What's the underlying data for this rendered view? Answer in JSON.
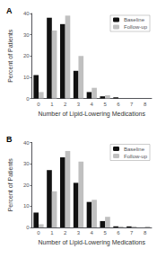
{
  "chart_data": [
    {
      "type": "bar",
      "title": "A",
      "x_label": "Number of Lipid-Lowering Medications",
      "y_label": "Percent of Patients",
      "categories": [
        0,
        1,
        2,
        3,
        4,
        5,
        6,
        7,
        8
      ],
      "series": [
        {
          "name": "Baseline",
          "color": "#111111",
          "values": [
            11,
            38,
            35,
            13,
            3,
            1,
            0.5,
            0,
            0
          ]
        },
        {
          "name": "Follow-up",
          "color": "#c0c0c0",
          "values": [
            3,
            32,
            39,
            20,
            5,
            1.5,
            0,
            0,
            0
          ]
        }
      ],
      "ylim": [
        0,
        40
      ],
      "yticks": [
        0,
        10,
        20,
        30,
        40
      ],
      "grid": false,
      "legend": "upper right"
    },
    {
      "type": "bar",
      "title": "B",
      "x_label": "Number of Lipid-Lowering Medications",
      "y_label": "Percent of Patients",
      "categories": [
        0,
        1,
        2,
        3,
        4,
        5,
        6,
        7,
        8
      ],
      "series": [
        {
          "name": "Baseline",
          "color": "#111111",
          "values": [
            7,
            27,
            33,
            21,
            12,
            3,
            0.5,
            0.5,
            0
          ]
        },
        {
          "name": "Follow-up",
          "color": "#c0c0c0",
          "values": [
            1.5,
            17,
            36,
            31,
            13,
            5,
            0.5,
            0.5,
            0.5
          ]
        }
      ],
      "ylim": [
        0,
        40
      ],
      "yticks": [
        0,
        10,
        20,
        30,
        40
      ],
      "grid": false,
      "legend": "upper right"
    }
  ]
}
